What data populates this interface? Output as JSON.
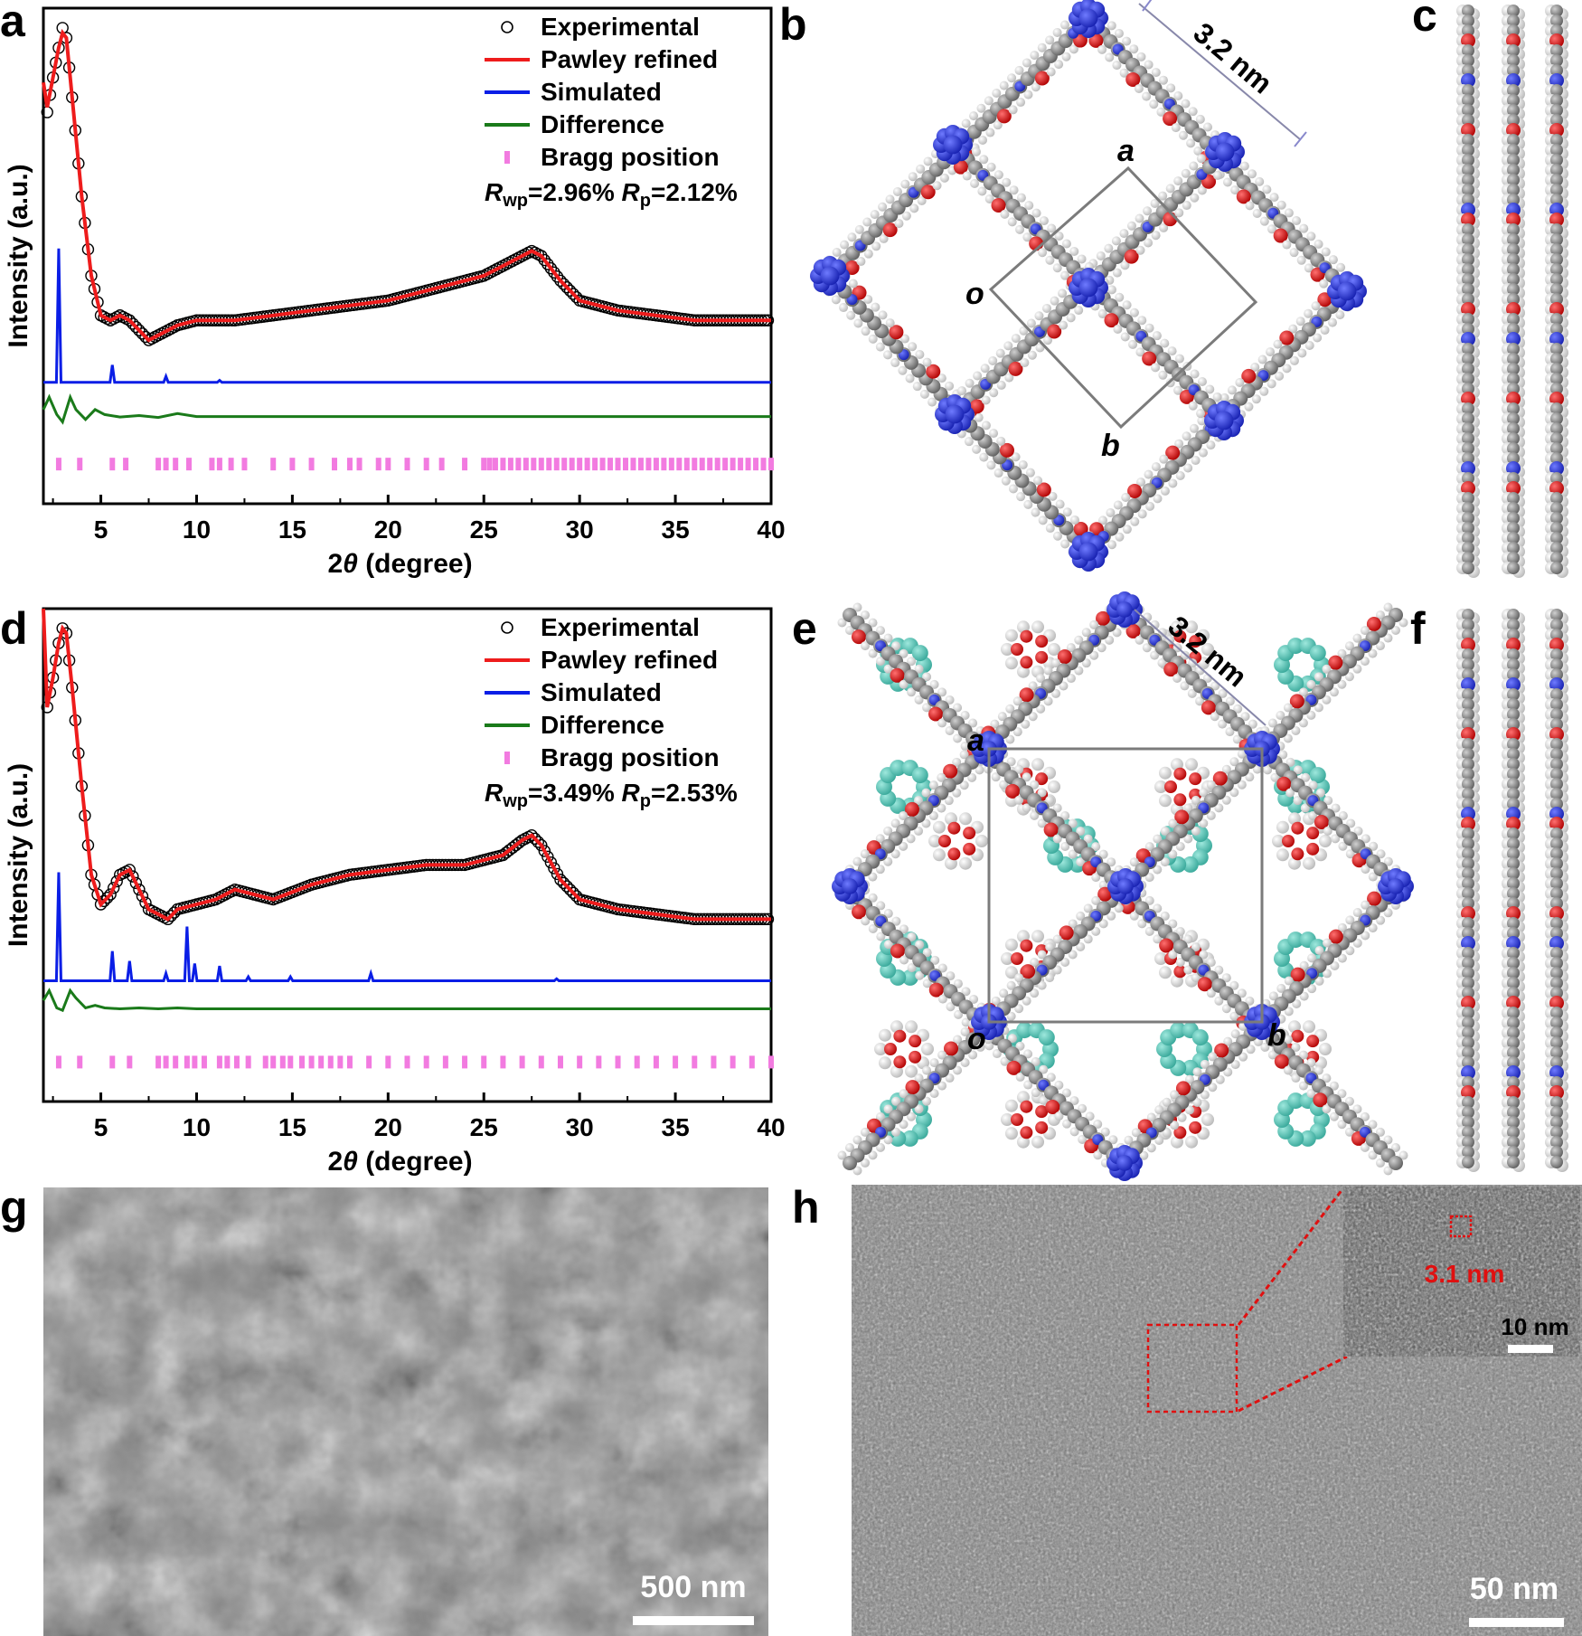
{
  "panels": [
    "a",
    "b",
    "c",
    "d",
    "e",
    "f",
    "g",
    "h"
  ],
  "chart_data": [
    {
      "panel": "a",
      "type": "line",
      "xlabel": "2θ (degree)",
      "ylabel": "Intensity (a.u.)",
      "xlim": [
        2,
        40
      ],
      "xticks": [
        "5",
        "10",
        "15",
        "20",
        "25",
        "30",
        "35",
        "40"
      ],
      "legend_position": "top-right",
      "legend": [
        "Experimental",
        "Pawley refined",
        "Simulated",
        "Difference",
        "Bragg position"
      ],
      "stats_rwp": "=2.96%",
      "stats_rp": "=2.12%",
      "colors": {
        "experimental": "#000000",
        "pawley": "#ee1c1c",
        "simulated": "#0a1ee6",
        "difference": "#1a7a1a",
        "bragg": "#f27be0"
      },
      "series": [
        {
          "name": "Experimental",
          "x": [
            2.2,
            2.5,
            2.8,
            3.0,
            3.2,
            3.5,
            4.0,
            4.5,
            5.0,
            5.5,
            6.0,
            6.5,
            7.0,
            7.5,
            8.0,
            9.0,
            10,
            11,
            12,
            14,
            16,
            18,
            20,
            22,
            24,
            25,
            26,
            27,
            27.5,
            28,
            29,
            30,
            32,
            34,
            36,
            38,
            40
          ],
          "y": [
            0.79,
            0.86,
            0.92,
            0.96,
            0.94,
            0.82,
            0.62,
            0.46,
            0.38,
            0.37,
            0.38,
            0.37,
            0.35,
            0.33,
            0.34,
            0.36,
            0.37,
            0.37,
            0.37,
            0.38,
            0.39,
            0.4,
            0.41,
            0.43,
            0.45,
            0.46,
            0.48,
            0.5,
            0.51,
            0.5,
            0.45,
            0.41,
            0.39,
            0.38,
            0.37,
            0.37,
            0.37
          ]
        },
        {
          "name": "Pawley refined",
          "x": [
            2.0,
            2.2,
            2.5,
            2.8,
            3.0,
            3.2,
            3.5,
            4.0,
            4.5,
            5.0,
            5.5,
            6.0,
            6.5,
            7.0,
            7.5,
            8.0,
            9.0,
            10,
            11,
            12,
            14,
            16,
            18,
            20,
            22,
            24,
            25,
            26,
            27,
            27.5,
            28,
            29,
            30,
            32,
            34,
            36,
            38,
            40
          ],
          "y": [
            0.85,
            0.8,
            0.86,
            0.92,
            0.95,
            0.94,
            0.82,
            0.62,
            0.46,
            0.38,
            0.37,
            0.38,
            0.37,
            0.35,
            0.33,
            0.34,
            0.36,
            0.37,
            0.37,
            0.37,
            0.38,
            0.39,
            0.4,
            0.41,
            0.43,
            0.45,
            0.46,
            0.48,
            0.5,
            0.51,
            0.5,
            0.45,
            0.41,
            0.39,
            0.38,
            0.37,
            0.37,
            0.37
          ]
        },
        {
          "name": "Simulated",
          "peaks": [
            [
              2.8,
              0.27
            ],
            [
              5.6,
              0.035
            ],
            [
              8.4,
              0.012
            ],
            [
              11.2,
              0.004
            ]
          ],
          "baseline": 0.245
        },
        {
          "name": "Difference",
          "x": [
            2.0,
            2.3,
            2.7,
            3.0,
            3.4,
            3.7,
            4.2,
            4.7,
            5.2,
            6,
            7,
            8,
            9,
            10,
            12,
            15,
            20,
            25,
            30,
            35,
            40
          ],
          "y": [
            0.19,
            0.215,
            0.18,
            0.165,
            0.215,
            0.19,
            0.17,
            0.19,
            0.18,
            0.175,
            0.178,
            0.174,
            0.182,
            0.176,
            0.176,
            0.176,
            0.176,
            0.176,
            0.176,
            0.176,
            0.176
          ]
        },
        {
          "name": "Bragg position",
          "x": [
            2.8,
            3.9,
            5.6,
            6.3,
            8.0,
            8.4,
            8.9,
            9.6,
            10.8,
            11.2,
            11.8,
            12.5,
            14.0,
            15.0,
            16.0,
            17.2,
            18.0,
            18.5,
            19.5,
            20.0,
            21.0,
            22.0,
            22.8,
            24.0,
            25.0,
            25.3,
            25.6,
            26.0,
            26.4,
            26.8,
            27.2,
            27.6,
            28.0,
            28.4,
            28.8,
            29.2,
            29.6,
            30.0,
            30.4,
            30.8,
            31.2,
            31.6,
            32.0,
            32.4,
            32.8,
            33.2,
            33.6,
            34.0,
            34.4,
            34.8,
            35.2,
            35.6,
            36.0,
            36.4,
            36.8,
            37.2,
            37.6,
            38.0,
            38.4,
            38.8,
            39.2,
            39.6,
            40.0
          ]
        }
      ]
    },
    {
      "panel": "d",
      "type": "line",
      "xlabel": "2θ (degree)",
      "ylabel": "Intensity (a.u.)",
      "xlim": [
        2,
        40
      ],
      "xticks": [
        "5",
        "10",
        "15",
        "20",
        "25",
        "30",
        "35",
        "40"
      ],
      "legend_position": "top-right",
      "legend": [
        "Experimental",
        "Pawley refined",
        "Simulated",
        "Difference",
        "Bragg position"
      ],
      "stats_rwp": "=3.49%",
      "stats_rp": "=2.53%",
      "colors": {
        "experimental": "#000000",
        "pawley": "#ee1c1c",
        "simulated": "#0a1ee6",
        "difference": "#1a7a1a",
        "bragg": "#f27be0"
      },
      "series": [
        {
          "name": "Experimental",
          "x": [
            2.2,
            2.5,
            2.8,
            3.0,
            3.2,
            3.5,
            4.0,
            4.5,
            5.0,
            5.5,
            6.0,
            6.5,
            7.0,
            7.5,
            8.0,
            8.5,
            9.0,
            10,
            11,
            12,
            13,
            14,
            16,
            18,
            20,
            22,
            24,
            26,
            27,
            27.5,
            28,
            29,
            30,
            32,
            34,
            36,
            38,
            40
          ],
          "y": [
            0.8,
            0.86,
            0.93,
            0.96,
            0.95,
            0.84,
            0.64,
            0.46,
            0.4,
            0.42,
            0.46,
            0.47,
            0.43,
            0.39,
            0.38,
            0.37,
            0.39,
            0.4,
            0.41,
            0.43,
            0.42,
            0.41,
            0.44,
            0.46,
            0.47,
            0.48,
            0.48,
            0.5,
            0.53,
            0.54,
            0.52,
            0.45,
            0.41,
            0.39,
            0.38,
            0.37,
            0.37,
            0.37
          ]
        },
        {
          "name": "Pawley refined",
          "x": [
            2.0,
            2.2,
            2.5,
            2.8,
            3.0,
            3.2,
            3.5,
            4.0,
            4.5,
            5.0,
            5.5,
            6.0,
            6.5,
            7.0,
            7.5,
            8.0,
            8.5,
            9.0,
            10,
            11,
            12,
            13,
            14,
            16,
            18,
            20,
            22,
            24,
            26,
            27,
            27.5,
            28,
            29,
            30,
            32,
            34,
            36,
            38,
            40
          ],
          "y": [
            1.0,
            0.8,
            0.86,
            0.93,
            0.96,
            0.95,
            0.84,
            0.64,
            0.46,
            0.4,
            0.42,
            0.46,
            0.47,
            0.43,
            0.39,
            0.38,
            0.37,
            0.39,
            0.4,
            0.41,
            0.43,
            0.42,
            0.41,
            0.44,
            0.46,
            0.47,
            0.48,
            0.48,
            0.5,
            0.53,
            0.54,
            0.52,
            0.45,
            0.41,
            0.39,
            0.38,
            0.37,
            0.37,
            0.37
          ]
        },
        {
          "name": "Simulated",
          "peaks": [
            [
              2.8,
              0.22
            ],
            [
              5.6,
              0.06
            ],
            [
              6.5,
              0.04
            ],
            [
              8.4,
              0.015
            ],
            [
              9.5,
              0.11
            ],
            [
              9.9,
              0.035
            ],
            [
              11.2,
              0.03
            ],
            [
              12.7,
              0.008
            ],
            [
              14.9,
              0.008
            ],
            [
              19.1,
              0.015
            ],
            [
              28.8,
              0.004
            ]
          ],
          "baseline": 0.245
        },
        {
          "name": "Difference",
          "x": [
            2.0,
            2.3,
            2.7,
            3.0,
            3.4,
            3.7,
            4.2,
            4.7,
            5.2,
            6,
            7,
            8,
            9,
            10,
            12,
            15,
            20,
            25,
            30,
            35,
            40
          ],
          "y": [
            0.205,
            0.225,
            0.19,
            0.185,
            0.225,
            0.21,
            0.19,
            0.195,
            0.19,
            0.188,
            0.19,
            0.188,
            0.19,
            0.188,
            0.188,
            0.188,
            0.188,
            0.188,
            0.188,
            0.188,
            0.188
          ]
        },
        {
          "name": "Bragg position",
          "x": [
            2.8,
            3.9,
            5.6,
            6.5,
            8.0,
            8.4,
            8.9,
            9.5,
            9.9,
            10.4,
            11.2,
            11.6,
            12.1,
            12.7,
            13.6,
            14.0,
            14.5,
            14.9,
            15.5,
            16.0,
            16.5,
            17.0,
            17.5,
            18.0,
            19.0,
            20,
            21,
            22,
            23,
            24,
            25,
            26,
            27,
            28,
            29,
            30,
            31,
            32,
            33,
            34,
            35,
            36,
            37,
            38,
            39,
            40
          ]
        }
      ]
    }
  ],
  "structure_b": {
    "dimension": "3.2 nm",
    "cell_a": "a",
    "cell_b": "b",
    "cell_o": "o"
  },
  "structure_e": {
    "dimension": "3.2 nm",
    "cell_a": "a",
    "cell_b": "b",
    "cell_o": "o"
  },
  "image_g": {
    "scale_bar": "500 nm"
  },
  "image_h": {
    "scale_bar": "50 nm",
    "inset_scale_bar": "10 nm",
    "inset_label": "3.1 nm"
  }
}
